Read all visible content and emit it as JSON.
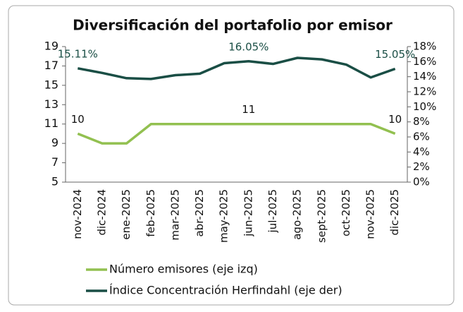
{
  "chart_data": {
    "type": "line",
    "title": "Diversificación del portafolio por emisor",
    "categories": [
      "nov-2024",
      "dic-2024",
      "ene-2025",
      "feb-2025",
      "mar-2025",
      "abr-2025",
      "may-2025",
      "jun-2025",
      "jul-2025",
      "ago-2025",
      "sept-2025",
      "oct-2025",
      "nov-2025",
      "dic-2025"
    ],
    "series": [
      {
        "name": "Número emisores (eje izq)",
        "color": "#92c050",
        "axis": "y",
        "values": [
          10,
          9,
          9,
          11,
          11,
          11,
          11,
          11,
          11,
          11,
          11,
          11,
          11,
          10
        ],
        "value_labels": [
          "10",
          null,
          null,
          null,
          null,
          null,
          null,
          "11",
          null,
          null,
          null,
          null,
          null,
          "10"
        ]
      },
      {
        "name": "Índice Concentración Herfindahl (eje der)",
        "color": "#1a4e45",
        "axis": "y2",
        "values": [
          15.11,
          14.5,
          13.8,
          13.7,
          14.2,
          14.4,
          15.8,
          16.05,
          15.7,
          16.5,
          16.3,
          15.6,
          13.9,
          15.05
        ],
        "value_labels": [
          "15.11%",
          null,
          null,
          null,
          null,
          null,
          null,
          "16.05%",
          null,
          null,
          null,
          null,
          null,
          "15.05%"
        ]
      }
    ],
    "ylim": [
      5,
      19
    ],
    "yticks": [
      5,
      7,
      9,
      11,
      13,
      15,
      17,
      19
    ],
    "y2lim": [
      0,
      18
    ],
    "y2ticks": [
      {
        "value": 0,
        "label": "0%"
      },
      {
        "value": 2,
        "label": "2%"
      },
      {
        "value": 4,
        "label": "4%"
      },
      {
        "value": 6,
        "label": "6%"
      },
      {
        "value": 8,
        "label": "8%"
      },
      {
        "value": 10,
        "label": "10%"
      },
      {
        "value": 12,
        "label": "12%"
      },
      {
        "value": 14,
        "label": "14%"
      },
      {
        "value": 16,
        "label": "16%"
      },
      {
        "value": 18,
        "label": "18%"
      }
    ],
    "legend": "bottom"
  }
}
